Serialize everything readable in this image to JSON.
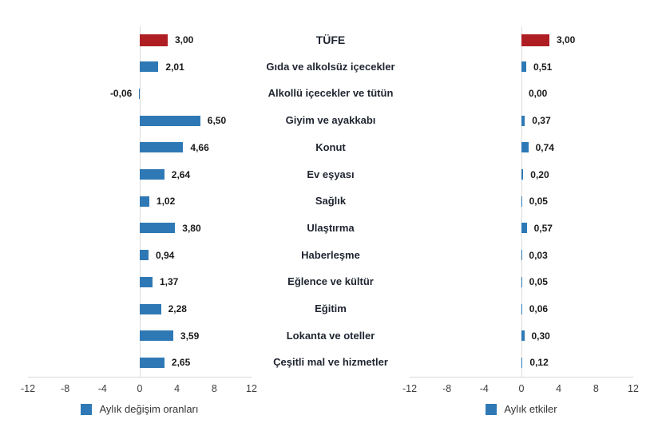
{
  "page": {
    "background": "#ffffff"
  },
  "colors": {
    "headline_bar": "#af1e23",
    "category_bar": "#2e79b5",
    "legend_swatch": "#2e79b5",
    "axis_line": "#d9d9d9",
    "zero_line": "#dcdcdc",
    "category_label": "#1f2430",
    "value_label": "#1a1a1a",
    "tick_label": "#3d3d3d"
  },
  "categories": [
    "TÜFE",
    "Gıda ve alkolsüz içecekler",
    "Alkollü içecekler ve tütün",
    "Giyim ve ayakkabı",
    "Konut",
    "Ev eşyası",
    "Sağlık",
    "Ulaştırma",
    "Haberleşme",
    "Eğlence ve kültür",
    "Eğitim",
    "Lokanta ve oteller",
    "Çeşitli mal ve hizmetler"
  ],
  "chart_data": [
    {
      "type": "bar",
      "orientation": "horizontal",
      "legend": "Aylık değişim oranları",
      "categories": [
        "TÜFE",
        "Gıda ve alkolsüz içecekler",
        "Alkollü içecekler ve tütün",
        "Giyim ve ayakkabı",
        "Konut",
        "Ev eşyası",
        "Sağlık",
        "Ulaştırma",
        "Haberleşme",
        "Eğlence ve kültür",
        "Eğitim",
        "Lokanta ve oteller",
        "Çeşitli mal ve hizmetler"
      ],
      "values": [
        3.0,
        2.01,
        -0.06,
        6.5,
        4.66,
        2.64,
        1.02,
        3.8,
        0.94,
        1.37,
        2.28,
        3.59,
        2.65
      ],
      "value_labels": [
        "3,00",
        "2,01",
        "-0,06",
        "6,50",
        "4,66",
        "2,64",
        "1,02",
        "3,80",
        "0,94",
        "1,37",
        "2,28",
        "3,59",
        "2,65"
      ],
      "highlight_index": 0,
      "xlim": [
        -12,
        12
      ],
      "ticks": [
        -12,
        -8,
        -4,
        0,
        4,
        8,
        12
      ],
      "tick_labels": [
        "-12",
        "-8",
        "-4",
        "0",
        "4",
        "8",
        "12"
      ],
      "grid": "zero-line-only",
      "legend_position": "bottom-center"
    },
    {
      "type": "bar",
      "orientation": "horizontal",
      "legend": "Aylık etkiler",
      "categories": [
        "TÜFE",
        "Gıda ve alkolsüz içecekler",
        "Alkollü içecekler ve tütün",
        "Giyim ve ayakkabı",
        "Konut",
        "Ev eşyası",
        "Sağlık",
        "Ulaştırma",
        "Haberleşme",
        "Eğlence ve kültür",
        "Eğitim",
        "Lokanta ve oteller",
        "Çeşitli mal ve hizmetler"
      ],
      "values": [
        3.0,
        0.51,
        0.0,
        0.37,
        0.74,
        0.2,
        0.05,
        0.57,
        0.03,
        0.05,
        0.06,
        0.3,
        0.12
      ],
      "value_labels": [
        "3,00",
        "0,51",
        "0,00",
        "0,37",
        "0,74",
        "0,20",
        "0,05",
        "0,57",
        "0,03",
        "0,05",
        "0,06",
        "0,30",
        "0,12"
      ],
      "highlight_index": 0,
      "xlim": [
        -12,
        12
      ],
      "ticks": [
        -12,
        -8,
        -4,
        0,
        4,
        8,
        12
      ],
      "tick_labels": [
        "-12",
        "-8",
        "-4",
        "0",
        "4",
        "8",
        "12"
      ],
      "grid": "zero-line-only",
      "legend_position": "bottom-center"
    }
  ]
}
